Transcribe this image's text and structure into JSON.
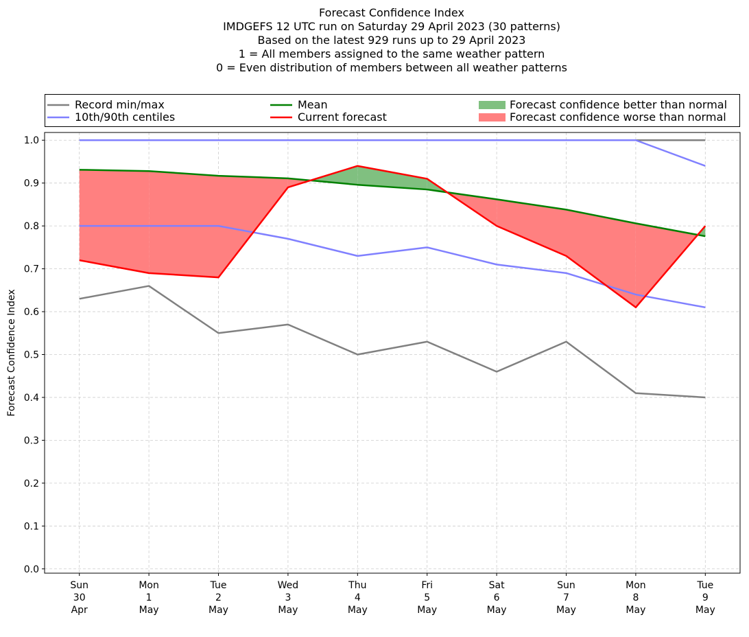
{
  "chart_data": {
    "type": "line",
    "title_lines": [
      "Forecast Confidence Index",
      "IMDGEFS 12 UTC run on Saturday 29 April 2023 (30 patterns)",
      "Based on the latest 929 runs up to 29 April 2023",
      "1 = All members assigned to the same weather pattern",
      "0 = Even distribution of members between all weather patterns"
    ],
    "ylabel": "Forecast Confidence Index",
    "xlabel": "",
    "ylim": [
      -0.01,
      1.018
    ],
    "yticks": [
      "0.0",
      "0.1",
      "0.2",
      "0.3",
      "0.4",
      "0.5",
      "0.6",
      "0.7",
      "0.8",
      "0.9",
      "1.0"
    ],
    "grid": true,
    "legend_placement": "top, above plot, 3 columns",
    "categories": [
      [
        "Sun",
        "30",
        "Apr"
      ],
      [
        "Mon",
        "1",
        "May"
      ],
      [
        "Tue",
        "2",
        "May"
      ],
      [
        "Wed",
        "3",
        "May"
      ],
      [
        "Thu",
        "4",
        "May"
      ],
      [
        "Fri",
        "5",
        "May"
      ],
      [
        "Sat",
        "6",
        "May"
      ],
      [
        "Sun",
        "7",
        "May"
      ],
      [
        "Mon",
        "8",
        "May"
      ],
      [
        "Tue",
        "9",
        "May"
      ]
    ],
    "series": [
      {
        "name": "Record min/max",
        "role": "record_min",
        "color": "#808080",
        "values": [
          0.63,
          0.66,
          0.55,
          0.57,
          0.5,
          0.53,
          0.46,
          0.53,
          0.41,
          0.4
        ]
      },
      {
        "name": "Record min/max",
        "role": "record_max",
        "color": "#808080",
        "values": [
          1,
          1,
          1,
          1,
          1,
          1,
          1,
          1,
          1,
          1
        ]
      },
      {
        "name": "10th/90th centiles",
        "role": "p10",
        "color": "#8080ff",
        "values": [
          0.8,
          0.8,
          0.8,
          0.77,
          0.73,
          0.75,
          0.71,
          0.69,
          0.64,
          0.61
        ]
      },
      {
        "name": "10th/90th centiles",
        "role": "p90",
        "color": "#8080ff",
        "values": [
          1,
          1,
          1,
          1,
          1,
          1,
          1,
          1,
          1,
          0.94
        ]
      },
      {
        "name": "Mean",
        "role": "mean",
        "color": "#008000",
        "values": [
          0.931,
          0.928,
          0.917,
          0.911,
          0.896,
          0.885,
          0.862,
          0.838,
          0.806,
          0.776
        ]
      },
      {
        "name": "Current forecast",
        "role": "current",
        "color": "#ff0000",
        "values": [
          0.72,
          0.69,
          0.68,
          0.89,
          0.94,
          0.91,
          0.8,
          0.73,
          0.61,
          0.8
        ]
      }
    ],
    "legend": [
      {
        "label": "Record min/max",
        "kind": "line",
        "color": "#808080"
      },
      {
        "label": "10th/90th centiles",
        "kind": "line",
        "color": "#8080ff"
      },
      {
        "label": "Mean",
        "kind": "line",
        "color": "#008000"
      },
      {
        "label": "Current forecast",
        "kind": "line",
        "color": "#ff0000"
      },
      {
        "label": "Forecast confidence better than normal",
        "kind": "patch",
        "color": "#80c080"
      },
      {
        "label": "Forecast confidence worse than normal",
        "kind": "patch",
        "color": "#ff8080"
      }
    ]
  }
}
